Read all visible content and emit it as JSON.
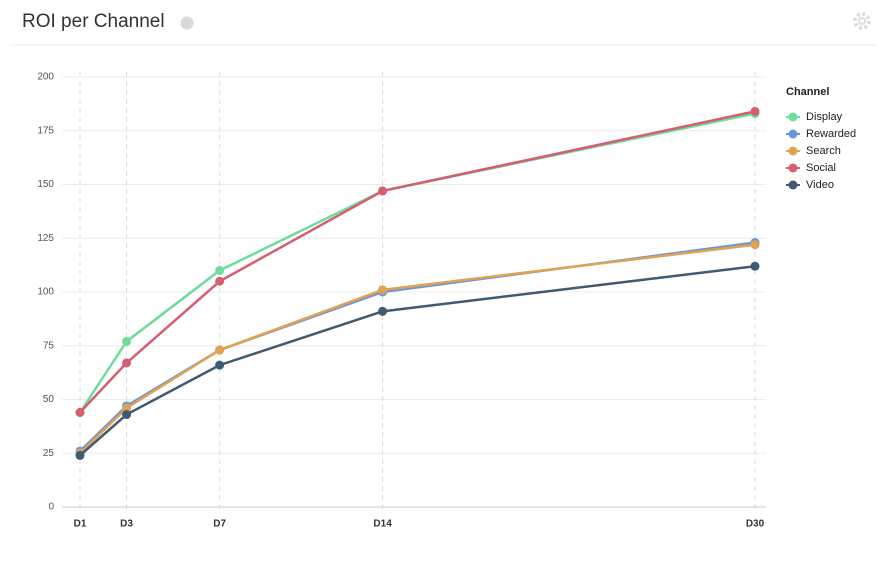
{
  "chart_data": {
    "type": "line",
    "title": "ROI per Channel",
    "x": [
      1,
      3,
      7,
      14,
      30
    ],
    "xlim": [
      1,
      30
    ],
    "xticks": [
      {
        "value": 1,
        "label": "D1"
      },
      {
        "value": 3,
        "label": "D3"
      },
      {
        "value": 7,
        "label": "D7"
      },
      {
        "value": 14,
        "label": "D14"
      },
      {
        "value": 30,
        "label": "D30"
      }
    ],
    "ylim": [
      0,
      200
    ],
    "yticks": [
      0,
      25,
      50,
      75,
      100,
      125,
      150,
      175,
      200
    ],
    "grid": true,
    "legend_title": "Channel",
    "legend_position": "right",
    "series": [
      {
        "name": "Display",
        "color": "#6fdc9b",
        "values": [
          44,
          77,
          110,
          147,
          183
        ]
      },
      {
        "name": "Rewarded",
        "color": "#6b96d8",
        "values": [
          26,
          47,
          73,
          100,
          123
        ]
      },
      {
        "name": "Search",
        "color": "#e0a353",
        "values": [
          25,
          46,
          73,
          101,
          122
        ]
      },
      {
        "name": "Social",
        "color": "#d45f70",
        "values": [
          44,
          67,
          105,
          147,
          184
        ]
      },
      {
        "name": "Video",
        "color": "#3f5a72",
        "values": [
          24,
          43,
          66,
          91,
          112
        ]
      }
    ]
  }
}
